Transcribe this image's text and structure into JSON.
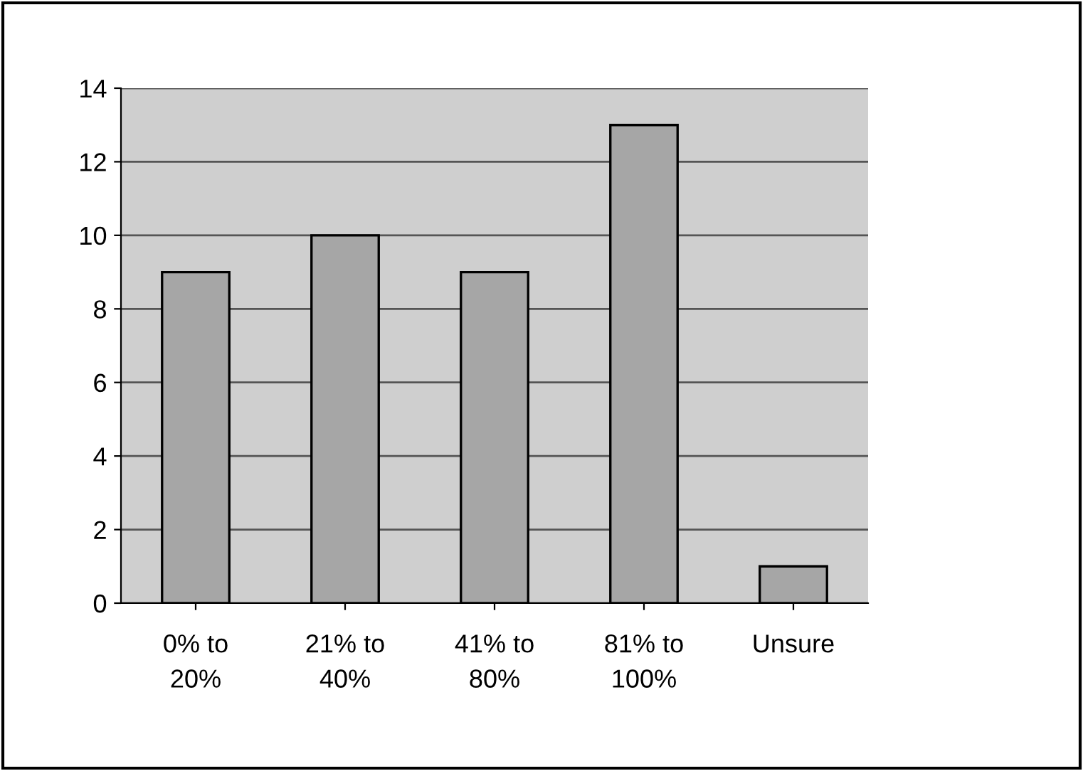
{
  "chart_data": {
    "type": "bar",
    "categories": [
      "0% to\n20%",
      "21% to\n40%",
      "41% to\n80%",
      "81% to\n100%",
      "Unsure"
    ],
    "values": [
      9,
      10,
      9,
      13,
      1
    ],
    "color": "#a6a6a6",
    "ylim": [
      0,
      14
    ],
    "yticks": [
      0,
      2,
      4,
      6,
      8,
      10,
      12,
      14
    ],
    "grid": "y",
    "legend": false
  }
}
